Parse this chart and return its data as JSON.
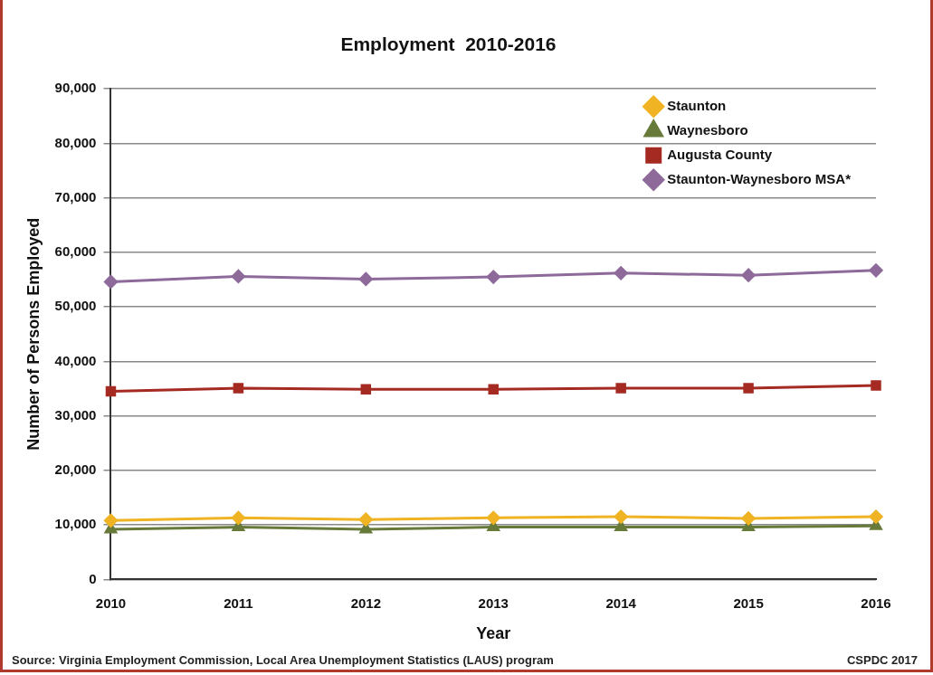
{
  "chart_data": {
    "type": "line",
    "title": "Employment  2010-2016",
    "xlabel": "Year",
    "ylabel": "Number of Persons Employed",
    "categories": [
      "2010",
      "2011",
      "2012",
      "2013",
      "2014",
      "2015",
      "2016"
    ],
    "series": [
      {
        "name": "Staunton",
        "color": "#f0b323",
        "marker": "diamond",
        "values": [
          10800,
          11300,
          11000,
          11300,
          11500,
          11200,
          11500
        ]
      },
      {
        "name": "Waynesboro",
        "color": "#677a3a",
        "marker": "triangle",
        "values": [
          9200,
          9600,
          9200,
          9600,
          9600,
          9600,
          9800
        ]
      },
      {
        "name": "Augusta County",
        "color": "#a52a22",
        "marker": "square",
        "values": [
          34500,
          35100,
          34900,
          34900,
          35100,
          35100,
          35600
        ]
      },
      {
        "name": "Staunton-Waynesboro MSA*",
        "color": "#8e6a9a",
        "marker": "diamond",
        "values": [
          54600,
          55600,
          55100,
          55500,
          56200,
          55800,
          56700
        ]
      }
    ],
    "ylim": [
      0,
      90000
    ],
    "yticks": [
      0,
      {
        "value": 10000,
        "label": "10,000"
      },
      {
        "value": 20000,
        "label": "20,000"
      },
      {
        "value": 30000,
        "label": "30,000"
      },
      {
        "value": 40000,
        "label": "40,000"
      },
      {
        "value": 50000,
        "label": "50,000"
      },
      {
        "value": 60000,
        "label": "60,000"
      },
      {
        "value": 70000,
        "label": "70,000"
      },
      {
        "value": 80000,
        "label": "80,000"
      },
      {
        "value": 90000,
        "label": "90,000"
      }
    ],
    "grid": "y",
    "legend": "top right",
    "line_style": "solid",
    "annotations": [
      "Source: Virginia Employment Commission, Local Area Unemployment Statistics (LAUS) program",
      "CSPDC 2017"
    ]
  }
}
